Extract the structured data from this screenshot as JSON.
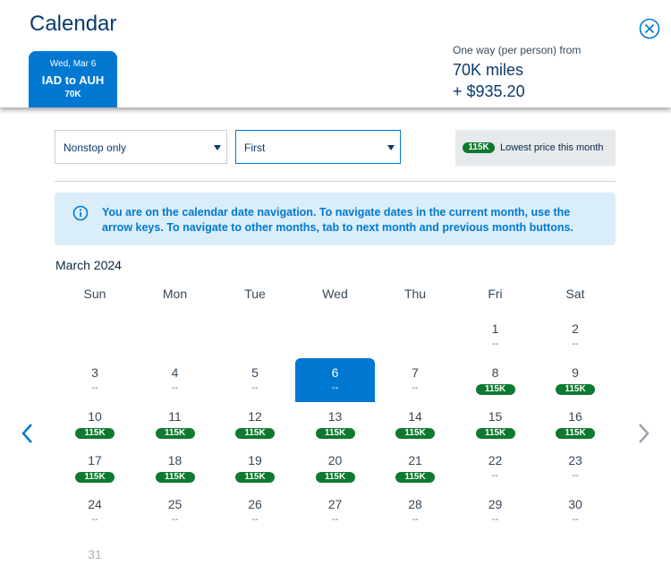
{
  "header": {
    "title": "Calendar"
  },
  "selected_flight": {
    "date": "Wed, Mar 6",
    "route": "IAD to AUH",
    "price": "70K"
  },
  "fare": {
    "label": "One way (per person) from",
    "miles": "70K miles",
    "cash": "+ $935.20"
  },
  "filters": {
    "stops": "Nonstop only",
    "cabin": "First"
  },
  "legend": {
    "badge": "115K",
    "label": "Lowest price this month"
  },
  "info": "You are on the calendar date navigation. To navigate dates in the current month, use the arrow keys. To navigate to other months, tab to next month and previous month buttons.",
  "calendar": {
    "month": "March 2024",
    "weekdays": [
      "Sun",
      "Mon",
      "Tue",
      "Wed",
      "Thu",
      "Fri",
      "Sat"
    ],
    "weeks": [
      [
        null,
        null,
        null,
        null,
        null,
        {
          "day": 1,
          "price": "--"
        },
        {
          "day": 2,
          "price": "--"
        }
      ],
      [
        {
          "day": 3,
          "price": "--"
        },
        {
          "day": 4,
          "price": "--"
        },
        {
          "day": 5,
          "price": "--"
        },
        {
          "day": 6,
          "price": "--",
          "selected": true
        },
        {
          "day": 7,
          "price": "--"
        },
        {
          "day": 8,
          "price": "115K",
          "lowest": true
        },
        {
          "day": 9,
          "price": "115K",
          "lowest": true
        }
      ],
      [
        {
          "day": 10,
          "price": "115K",
          "lowest": true
        },
        {
          "day": 11,
          "price": "115K",
          "lowest": true
        },
        {
          "day": 12,
          "price": "115K",
          "lowest": true
        },
        {
          "day": 13,
          "price": "115K",
          "lowest": true
        },
        {
          "day": 14,
          "price": "115K",
          "lowest": true
        },
        {
          "day": 15,
          "price": "115K",
          "lowest": true
        },
        {
          "day": 16,
          "price": "115K",
          "lowest": true
        }
      ],
      [
        {
          "day": 17,
          "price": "115K",
          "lowest": true
        },
        {
          "day": 18,
          "price": "115K",
          "lowest": true
        },
        {
          "day": 19,
          "price": "115K",
          "lowest": true
        },
        {
          "day": 20,
          "price": "115K",
          "lowest": true
        },
        {
          "day": 21,
          "price": "115K",
          "lowest": true
        },
        {
          "day": 22,
          "price": "--"
        },
        {
          "day": 23,
          "price": "--"
        }
      ],
      [
        {
          "day": 24,
          "price": "--"
        },
        {
          "day": 25,
          "price": "--"
        },
        {
          "day": 26,
          "price": "--"
        },
        {
          "day": 27,
          "price": "--"
        },
        {
          "day": 28,
          "price": "--"
        },
        {
          "day": 29,
          "price": "--"
        },
        {
          "day": 30,
          "price": "--"
        }
      ],
      [
        {
          "day": 31,
          "disabled": true
        },
        null,
        null,
        null,
        null,
        null,
        null
      ]
    ]
  }
}
